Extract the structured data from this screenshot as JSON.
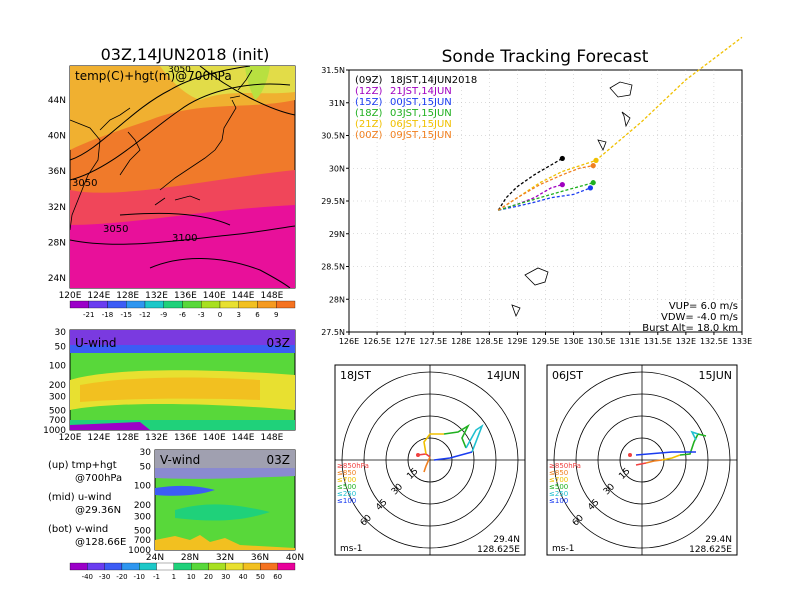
{
  "left_map": {
    "title": "03Z,14JUN2018 (init)",
    "subtitle": "temp(C)+hgt(m)@700hPa",
    "lon_ticks": [
      "120E",
      "124E",
      "128E",
      "132E",
      "136E",
      "140E",
      "144E",
      "148E"
    ],
    "lat_ticks": [
      "44N",
      "40N",
      "36N",
      "32N",
      "28N",
      "24N"
    ],
    "contour_labels": [
      "3050",
      "3050",
      "3100",
      "3050"
    ],
    "temp_colorbar": [
      "-21",
      "-18",
      "-15",
      "-12",
      "-9",
      "-6",
      "-3",
      "0",
      "3",
      "6",
      "9"
    ],
    "colors": [
      "#9b00c8",
      "#6a3df0",
      "#3c5cf5",
      "#2e96f0",
      "#1cc8c8",
      "#1fd17a",
      "#58d83a",
      "#a8e020",
      "#e8e030",
      "#f2c020",
      "#f59a20",
      "#f57220",
      "#f04040",
      "#f0208a",
      "#e8009a"
    ]
  },
  "uwind": {
    "label": "U-wind",
    "time": "03Z",
    "pres_ticks": [
      "30",
      "50",
      "100",
      "200",
      "300",
      "500",
      "700",
      "1000"
    ],
    "lon_ticks": [
      "120E",
      "124E",
      "128E",
      "132E",
      "136E",
      "140E",
      "144E",
      "148E"
    ]
  },
  "vwind": {
    "label": "V-wind",
    "time": "03Z",
    "pres_ticks": [
      "30",
      "50",
      "100",
      "200",
      "300",
      "500",
      "700",
      "1000"
    ],
    "lat_ticks": [
      "24N",
      "28N",
      "32N",
      "36N",
      "40N"
    ],
    "wind_colorbar": [
      "-40",
      "-30",
      "-20",
      "-10",
      "-1",
      "1",
      "10",
      "20",
      "30",
      "40",
      "50",
      "60"
    ]
  },
  "notes": [
    {
      "a": "(up)  tmp+hgt",
      "b": "@700hPa"
    },
    {
      "a": "(mid) u-wind",
      "b": "@29.36N"
    },
    {
      "a": "(bot) v-wind",
      "b": "@128.66E"
    }
  ],
  "tracking": {
    "title": "Sonde Tracking Forecast",
    "legend": [
      {
        "code": "(09Z)",
        "text": "18JST,14JUN2018",
        "color": "#000000"
      },
      {
        "code": "(12Z)",
        "text": "21JST,14JUN",
        "color": "#a000c0"
      },
      {
        "code": "(15Z)",
        "text": "00JST,15JUN",
        "color": "#1a3cf0"
      },
      {
        "code": "(18Z)",
        "text": "03JST,15JUN",
        "color": "#20b020"
      },
      {
        "code": "(21Z)",
        "text": "06JST,15JUN",
        "color": "#f0c000"
      },
      {
        "code": "(00Z)",
        "text": "09JST,15JUN",
        "color": "#f08020"
      }
    ],
    "info": [
      "VUP= 6.0 m/s",
      "VDW= -4.0 m/s",
      "Burst Alt= 18.0 km"
    ]
  },
  "hodo_left": {
    "time": "18JST",
    "date": "14JUN",
    "lat": "29.4N",
    "lon": "128.625E",
    "unit": "ms-1",
    "rings": [
      "15",
      "30",
      "45",
      "60"
    ]
  },
  "hodo_right": {
    "time": "06JST",
    "date": "15JUN",
    "lat": "29.4N",
    "lon": "128.625E",
    "unit": "ms-1",
    "rings": [
      "15",
      "30",
      "45",
      "60"
    ]
  },
  "hodo_legend": [
    {
      "t": "≥850hPa",
      "c": "#f04040"
    },
    {
      "t": "≤850",
      "c": "#f08020"
    },
    {
      "t": "≤700",
      "c": "#f0c000"
    },
    {
      "t": "≤500",
      "c": "#20b020"
    },
    {
      "t": "≤250",
      "c": "#20c0d0"
    },
    {
      "t": "≤100",
      "c": "#1a3cf0"
    }
  ],
  "chart_data": {
    "type": "line",
    "title": "Sonde Tracking Forecast",
    "xlabel": "",
    "ylabel": "",
    "xlim": [
      126,
      133
    ],
    "ylim": [
      27.5,
      31.5
    ],
    "x_ticks": [
      "126E",
      "126.5E",
      "127E",
      "127.5E",
      "128E",
      "128.5E",
      "129E",
      "129.5E",
      "130E",
      "130.5E",
      "131E",
      "131.5E",
      "132E",
      "132.5E",
      "133E"
    ],
    "y_ticks": [
      "27.5N",
      "28N",
      "28.5N",
      "29N",
      "29.5N",
      "30N",
      "30.5N",
      "31N",
      "31.5N"
    ],
    "grid": true,
    "legend_position": "top-left",
    "series": [
      {
        "name": "(09Z) 18JST,14JUN2018",
        "points": [
          [
            128.66,
            29.36
          ],
          [
            128.8,
            29.55
          ],
          [
            129.0,
            29.72
          ],
          [
            129.3,
            29.9
          ],
          [
            129.6,
            30.05
          ],
          [
            129.8,
            30.15
          ]
        ]
      },
      {
        "name": "(12Z) 21JST,14JUN",
        "points": [
          [
            128.66,
            29.36
          ],
          [
            129.0,
            29.45
          ],
          [
            129.3,
            29.55
          ],
          [
            129.6,
            29.7
          ],
          [
            129.8,
            29.75
          ]
        ]
      },
      {
        "name": "(15Z) 00JST,15JUN",
        "points": [
          [
            128.66,
            29.36
          ],
          [
            129.0,
            29.42
          ],
          [
            129.3,
            29.48
          ],
          [
            129.6,
            29.55
          ],
          [
            130.0,
            29.6
          ],
          [
            130.3,
            29.7
          ]
        ]
      },
      {
        "name": "(18Z) 03JST,15JUN",
        "points": [
          [
            128.66,
            29.36
          ],
          [
            129.0,
            29.45
          ],
          [
            129.4,
            29.55
          ],
          [
            129.8,
            29.65
          ],
          [
            130.1,
            29.72
          ],
          [
            130.35,
            29.78
          ]
        ]
      },
      {
        "name": "(21Z) 06JST,15JUN",
        "points": [
          [
            128.66,
            29.36
          ],
          [
            129.0,
            29.55
          ],
          [
            129.4,
            29.78
          ],
          [
            129.8,
            29.95
          ],
          [
            130.4,
            30.12
          ],
          [
            131.2,
            30.7
          ],
          [
            132.0,
            31.35
          ],
          [
            133.0,
            32.0
          ]
        ]
      },
      {
        "name": "(00Z) 09JST,15JUN",
        "points": [
          [
            128.66,
            29.36
          ],
          [
            129.0,
            29.55
          ],
          [
            129.4,
            29.75
          ],
          [
            129.8,
            29.9
          ],
          [
            130.1,
            30.0
          ],
          [
            130.35,
            30.04
          ]
        ]
      }
    ]
  }
}
